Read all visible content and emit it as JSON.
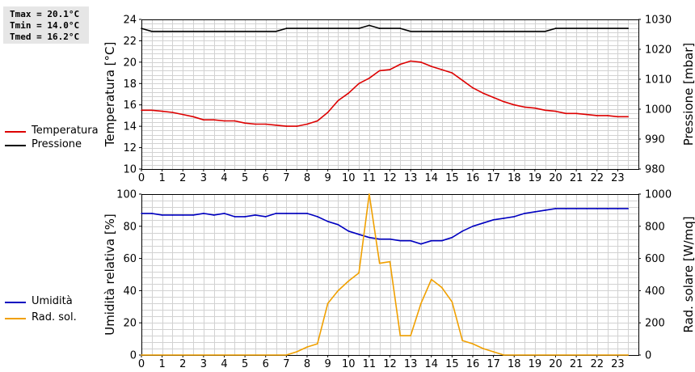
{
  "stats": {
    "tmax": "Tmax = 20.1°C",
    "tmin": "Tmin = 14.0°C",
    "tmed": "Tmed = 16.2°C"
  },
  "colors": {
    "temperature": "#dd0000",
    "pressure": "#000000",
    "humidity": "#0000c0",
    "radiation": "#f0a000",
    "grid": "#d2d2d2"
  },
  "chart_data": [
    {
      "type": "line",
      "xlabel": "",
      "ylabel": "Temperatura [°C]",
      "y2label": "Pressione [mbar]",
      "xlim": [
        0,
        24
      ],
      "xticks": [
        "0",
        "1",
        "2",
        "3",
        "4",
        "5",
        "6",
        "7",
        "8",
        "9",
        "10",
        "11",
        "12",
        "13",
        "14",
        "15",
        "16",
        "17",
        "18",
        "19",
        "20",
        "21",
        "22",
        "23"
      ],
      "ylim": [
        10,
        24
      ],
      "yticks": [
        "10",
        "12",
        "14",
        "16",
        "18",
        "20",
        "22",
        "24"
      ],
      "y2lim": [
        980,
        1030
      ],
      "y2ticks": [
        "980",
        "990",
        "1000",
        "1010",
        "1020",
        "1030"
      ],
      "grid": true,
      "legend_placement": "left",
      "series": [
        {
          "name": "Temperatura",
          "axis": "left",
          "color": "#dd0000",
          "x": [
            0,
            0.5,
            1,
            1.5,
            2,
            2.5,
            3,
            3.5,
            4,
            4.5,
            5,
            5.5,
            6,
            6.5,
            7,
            7.5,
            8,
            8.5,
            9,
            9.5,
            10,
            10.5,
            11,
            11.5,
            12,
            12.5,
            13,
            13.5,
            14,
            14.5,
            15,
            15.5,
            16,
            16.5,
            17,
            17.5,
            18,
            18.5,
            19,
            19.5,
            20,
            20.5,
            21,
            21.5,
            22,
            22.5,
            23,
            23.5
          ],
          "y": [
            15.5,
            15.5,
            15.4,
            15.3,
            15.1,
            14.9,
            14.6,
            14.6,
            14.5,
            14.5,
            14.3,
            14.2,
            14.2,
            14.1,
            14.0,
            14.0,
            14.2,
            14.5,
            15.3,
            16.4,
            17.1,
            18.0,
            18.5,
            19.2,
            19.3,
            19.8,
            20.1,
            20.0,
            19.6,
            19.3,
            19.0,
            18.3,
            17.6,
            17.1,
            16.7,
            16.3,
            16.0,
            15.8,
            15.7,
            15.5,
            15.4,
            15.2,
            15.2,
            15.1,
            15.0,
            15.0,
            14.9,
            14.9
          ]
        },
        {
          "name": "Pressione",
          "axis": "right",
          "color": "#000000",
          "x": [
            0,
            0.5,
            6.5,
            7,
            10.5,
            11,
            11.5,
            12.5,
            13,
            19.5,
            20,
            23.5
          ],
          "y": [
            1027,
            1026,
            1026,
            1027,
            1027,
            1028,
            1027,
            1027,
            1026,
            1026,
            1027,
            1027
          ]
        }
      ]
    },
    {
      "type": "line",
      "xlabel": "",
      "ylabel": "Umidità relativa [%]",
      "y2label": "Rad. solare [W/mq]",
      "xlim": [
        0,
        24
      ],
      "xticks": [
        "0",
        "1",
        "2",
        "3",
        "4",
        "5",
        "6",
        "7",
        "8",
        "9",
        "10",
        "11",
        "12",
        "13",
        "14",
        "15",
        "16",
        "17",
        "18",
        "19",
        "20",
        "21",
        "22",
        "23"
      ],
      "ylim": [
        0,
        100
      ],
      "yticks": [
        "0",
        "20",
        "40",
        "60",
        "80",
        "100"
      ],
      "y2lim": [
        0,
        1000
      ],
      "y2ticks": [
        "0",
        "200",
        "400",
        "600",
        "800",
        "1000"
      ],
      "grid": true,
      "legend_placement": "left",
      "series": [
        {
          "name": "Umidità",
          "axis": "left",
          "color": "#0000c0",
          "x": [
            0,
            0.5,
            1,
            1.5,
            2,
            2.5,
            3,
            3.5,
            4,
            4.5,
            5,
            5.5,
            6,
            6.5,
            7,
            7.5,
            8,
            8.5,
            9,
            9.5,
            10,
            10.5,
            11,
            11.5,
            12,
            12.5,
            13,
            13.5,
            14,
            14.5,
            15,
            15.5,
            16,
            16.5,
            17,
            17.5,
            18,
            18.5,
            19,
            19.5,
            20,
            20.5,
            21,
            21.5,
            22,
            22.5,
            23,
            23.5
          ],
          "y": [
            88,
            88,
            87,
            87,
            87,
            87,
            88,
            87,
            88,
            86,
            86,
            87,
            86,
            88,
            88,
            88,
            88,
            86,
            83,
            81,
            77,
            75,
            73,
            72,
            72,
            71,
            71,
            69,
            71,
            71,
            73,
            77,
            80,
            82,
            84,
            85,
            86,
            88,
            89,
            90,
            91,
            91,
            91,
            91,
            91,
            91,
            91,
            91
          ]
        },
        {
          "name": "Rad. sol.",
          "axis": "right",
          "color": "#f0a000",
          "x": [
            0,
            7,
            7.5,
            8,
            8.5,
            9,
            9.5,
            10,
            10.5,
            11,
            11.5,
            12,
            12.5,
            13,
            13.5,
            14,
            14.5,
            15,
            15.5,
            16,
            16.5,
            17,
            17.5,
            23.5
          ],
          "y": [
            0,
            0,
            20,
            50,
            70,
            320,
            400,
            460,
            510,
            1000,
            570,
            580,
            120,
            120,
            320,
            470,
            420,
            330,
            90,
            70,
            40,
            20,
            0,
            0
          ]
        }
      ]
    }
  ]
}
